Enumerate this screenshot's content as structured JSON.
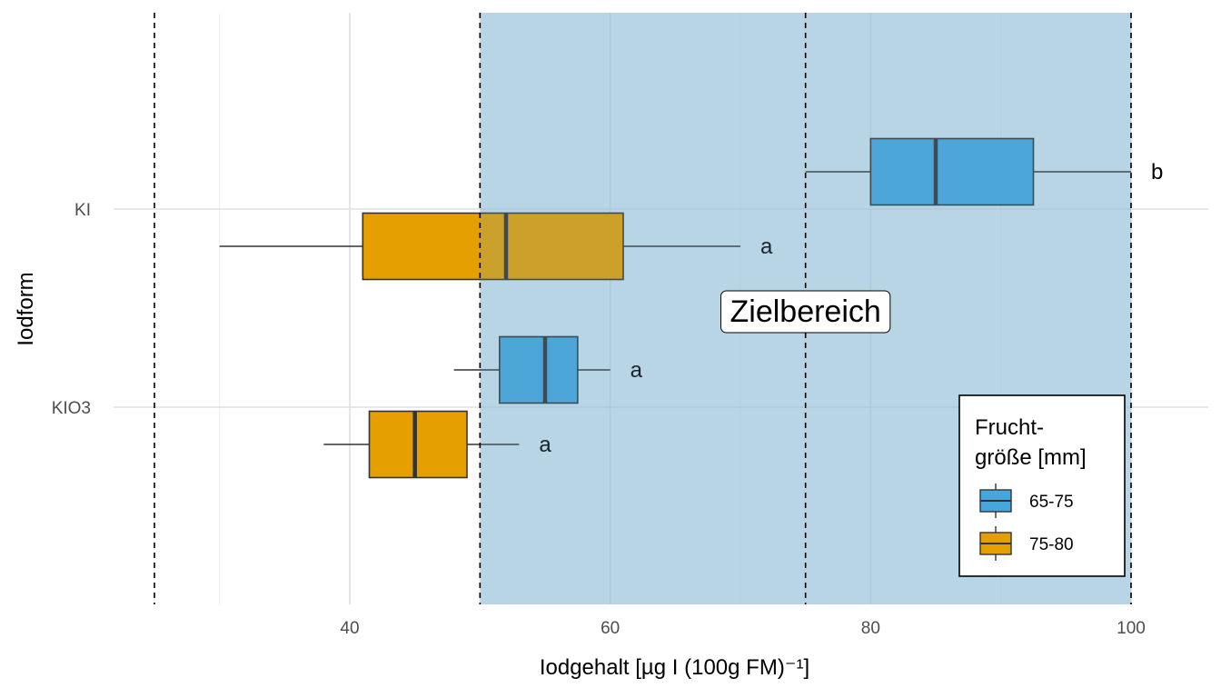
{
  "chart_data": {
    "type": "boxplot",
    "orientation": "horizontal",
    "xlabel": "Iodgehalt [µg I (100g FM)⁻¹]",
    "ylabel": "Iodform",
    "xlim": [
      23,
      106
    ],
    "x_ticks": [
      40,
      60,
      80,
      100
    ],
    "categories": [
      "KI",
      "KIO3"
    ],
    "target_range": {
      "from": 50,
      "to": 100,
      "label": "Zielbereich",
      "color": "#cce3ef"
    },
    "reference_lines": [
      25,
      50,
      75,
      100
    ],
    "legend": {
      "title_lines": [
        "Frucht-",
        "größe [mm]"
      ],
      "position": "bottom-right",
      "entries": [
        {
          "label": "65-75",
          "color": "#45a7de"
        },
        {
          "label": "75-80",
          "color": "#e69f00"
        }
      ]
    },
    "series": [
      {
        "name": "65-75",
        "color": "#45a7de",
        "boxes": [
          {
            "category": "KI",
            "whisker_low": 75,
            "q1": 80,
            "median": 85,
            "q3": 92.5,
            "whisker_high": 100,
            "label": "b"
          },
          {
            "category": "KIO3",
            "whisker_low": 48,
            "q1": 51.5,
            "median": 55,
            "q3": 57.5,
            "whisker_high": 60,
            "label": "a"
          }
        ]
      },
      {
        "name": "75-80",
        "color": "#e69f00",
        "boxes": [
          {
            "category": "KI",
            "whisker_low": 30,
            "q1": 41,
            "median": 52,
            "q3": 61,
            "whisker_high": 70,
            "label": "a"
          },
          {
            "category": "KIO3",
            "whisker_low": 38,
            "q1": 41.5,
            "median": 45,
            "q3": 49,
            "whisker_high": 53,
            "label": "a"
          }
        ]
      }
    ],
    "grid": true
  }
}
